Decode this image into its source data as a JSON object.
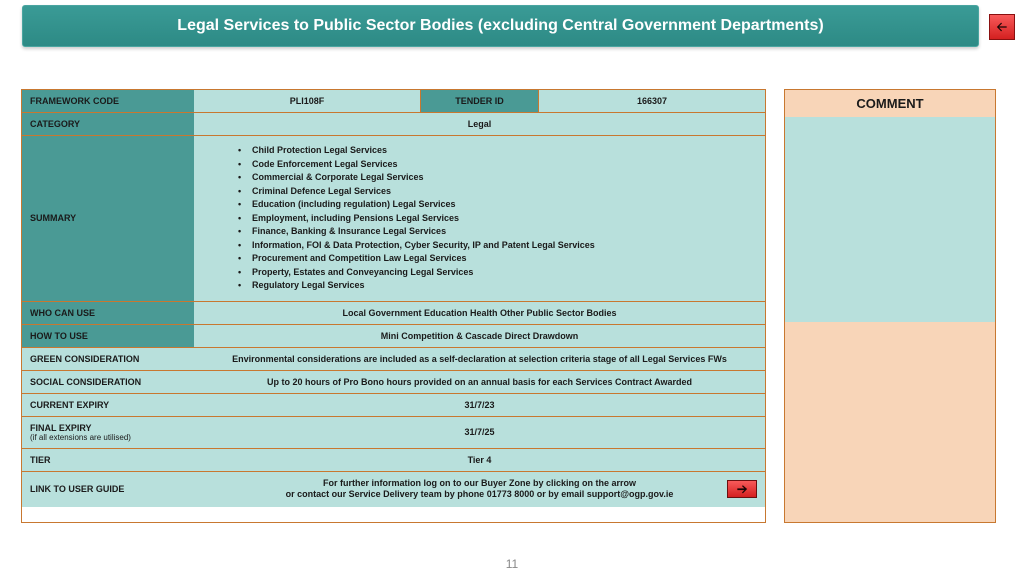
{
  "header": {
    "title": "Legal Services to Public Sector Bodies (excluding Central Government Departments)"
  },
  "table": {
    "framework_code": {
      "label": "FRAMEWORK CODE",
      "value": "PLI108F"
    },
    "tender_id": {
      "label": "TENDER ID",
      "value": "166307"
    },
    "category": {
      "label": "CATEGORY",
      "value": "Legal"
    },
    "summary": {
      "label": "SUMMARY",
      "items": [
        "Child Protection Legal Services",
        "Code Enforcement Legal Services",
        "Commercial & Corporate Legal Services",
        "Criminal Defence Legal Services",
        "Education (including regulation) Legal Services",
        "Employment, including Pensions Legal Services",
        "Finance, Banking & Insurance Legal Services",
        "Information, FOI & Data Protection, Cyber Security, IP and Patent Legal Services",
        "Procurement and Competition Law Legal Services",
        "Property, Estates and Conveyancing Legal Services",
        "Regulatory Legal Services"
      ]
    },
    "who_can_use": {
      "label": "WHO CAN USE",
      "value": "Local Government Education Health Other Public Sector Bodies"
    },
    "how_to_use": {
      "label": "HOW TO USE",
      "value": "Mini Competition & Cascade Direct Drawdown"
    },
    "green": {
      "label": "GREEN CONSIDERATION",
      "value": "Environmental considerations are included as a self-declaration at selection criteria stage of all Legal Services FWs"
    },
    "social": {
      "label": "SOCIAL CONSIDERATION",
      "value": "Up to 20 hours of Pro Bono hours provided on an annual basis for each Services Contract Awarded"
    },
    "current_expiry": {
      "label": "CURRENT EXPIRY",
      "value": "31/7/23"
    },
    "final_expiry": {
      "label": "FINAL EXPIRY",
      "sublabel": "(if all extensions are utilised)",
      "value": "31/7/25"
    },
    "tier": {
      "label": "TIER",
      "value": "Tier 4"
    },
    "link_guide": {
      "label": "LINK TO USER GUIDE",
      "line1": "For further information log on to our Buyer Zone by clicking on the arrow",
      "line2": "or contact our Service Delivery team by phone  01773 8000 or by email  support@ogp.gov.ie"
    }
  },
  "comment": {
    "header": "COMMENT"
  },
  "page_number": "11"
}
